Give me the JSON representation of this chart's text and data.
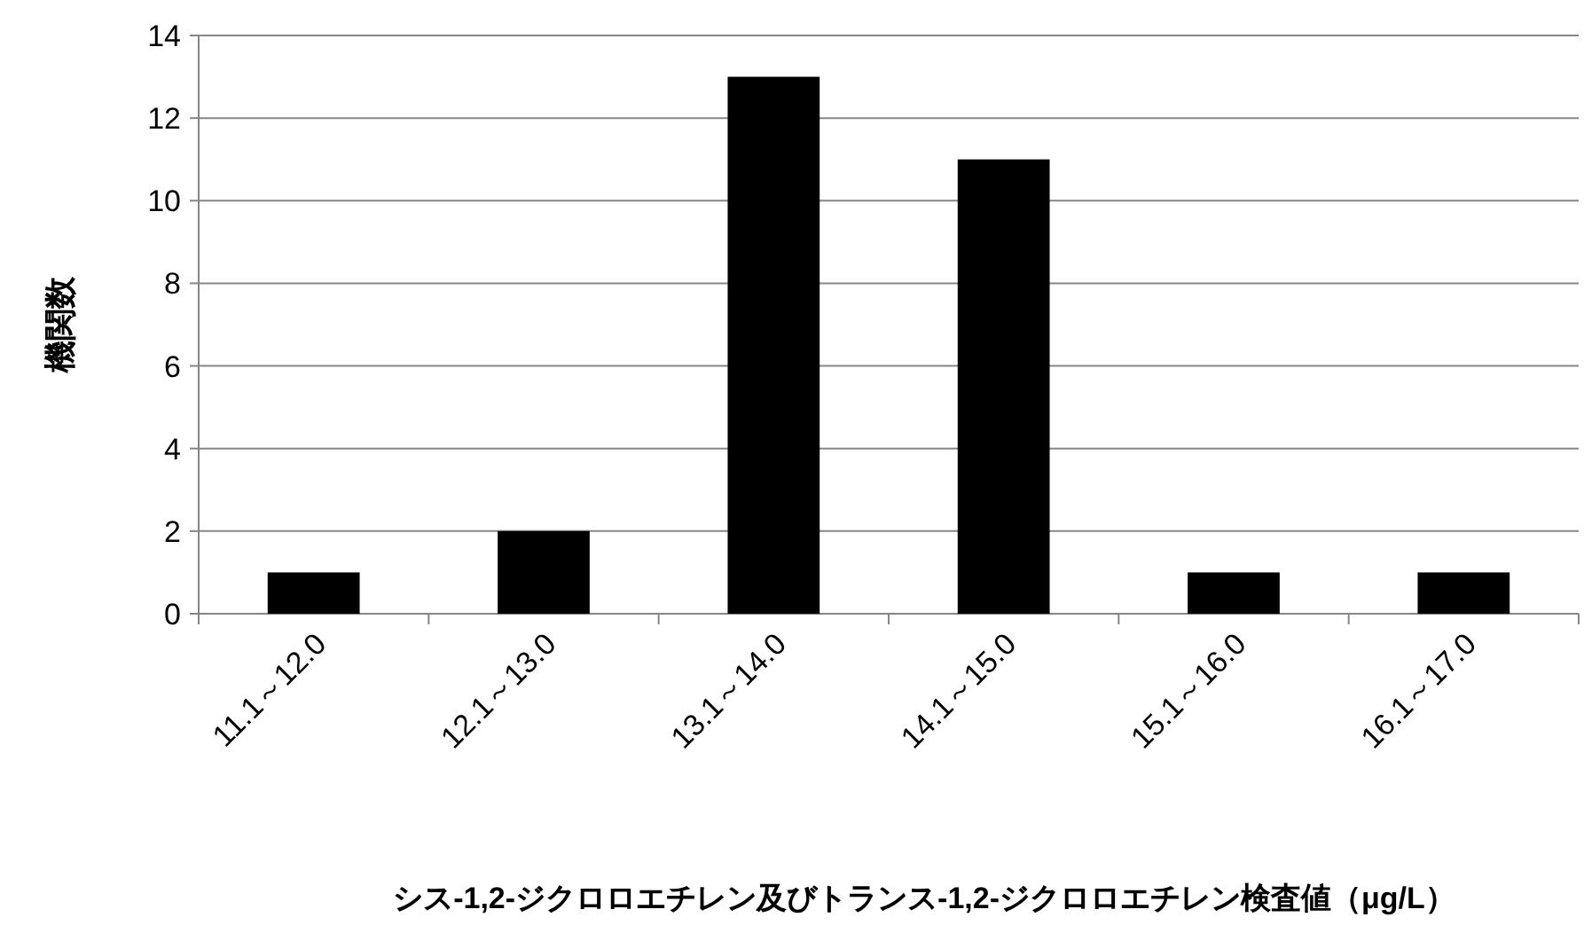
{
  "chart_data": {
    "type": "bar",
    "categories": [
      "11.1～12.0",
      "12.1～13.0",
      "13.1～14.0",
      "14.1～15.0",
      "15.1～16.0",
      "16.1～17.0"
    ],
    "values": [
      1,
      2,
      13,
      11,
      1,
      1
    ],
    "color": "#000000",
    "ylim": [
      0,
      14
    ],
    "yticks": [
      0,
      2,
      4,
      6,
      8,
      10,
      12,
      14
    ],
    "grid": "y",
    "ylabel": "機関数",
    "xlabel": "シス-1,2-ジクロロエチレン及びトランス-1,2-ジクロロエチレン検査値（μg/L）"
  }
}
